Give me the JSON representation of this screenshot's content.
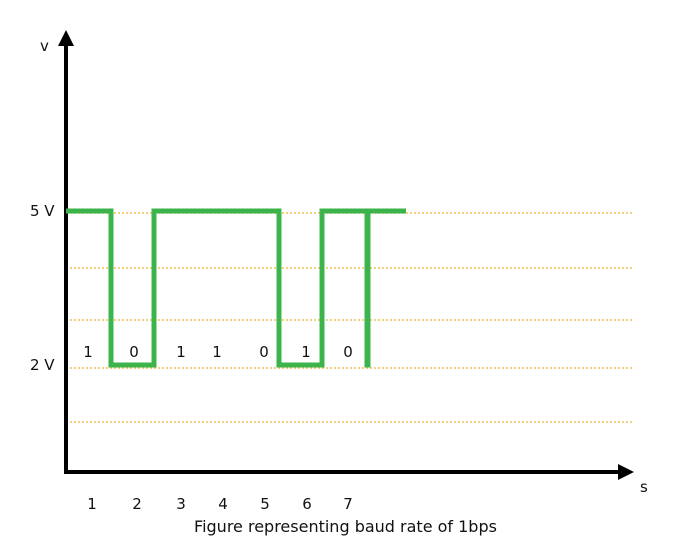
{
  "caption": "Figure representing baud rate of 1bps",
  "chart_data": {
    "type": "line",
    "xlabel": "s",
    "ylabel": "v",
    "x_ticks": [
      "1",
      "2",
      "3",
      "4",
      "5",
      "6",
      "7"
    ],
    "y_ticks": [
      {
        "label": "5 V",
        "value": 5
      },
      {
        "label": "2 V",
        "value": 2
      }
    ],
    "bits": [
      "1",
      "0",
      "1",
      "1",
      "0",
      "1",
      "0"
    ],
    "levels": [
      5,
      2,
      5,
      5,
      2,
      5,
      2
    ],
    "signal_color": "#3cb44b",
    "grid_color": "#f2c14e",
    "axis_color": "#000000"
  }
}
